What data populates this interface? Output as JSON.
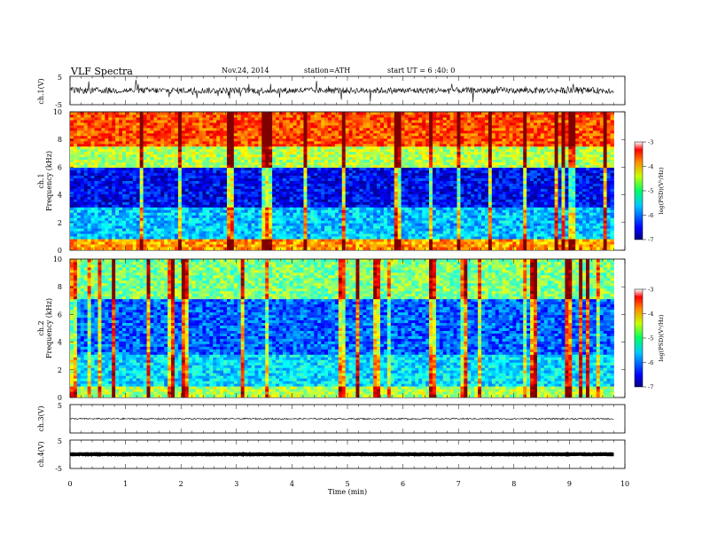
{
  "header": {
    "title": "VLF  Spectra",
    "date": "Nov.24, 2014",
    "station": "station=ATH",
    "start": "start  UT  =    6  :40: 0"
  },
  "chart_data": [
    {
      "type": "line",
      "name": "ch1-waveform",
      "ylabel": "ch.1(V)",
      "ylim": [
        -5,
        5
      ],
      "yticks": [
        "5",
        "-5"
      ],
      "level": 0.0,
      "xlim": [
        0,
        9.8
      ]
    },
    {
      "type": "heatmap",
      "name": "ch1-spectrogram",
      "ylabel": "ch.1\nFrequency (kHz)",
      "ylabel_top": "ch.1",
      "ylabel_bottom": "Frequency (kHz)",
      "ylim": [
        0,
        10
      ],
      "yticks": [
        "0",
        "2",
        "4",
        "6",
        "8",
        "10"
      ],
      "xlim": [
        0,
        9.8
      ],
      "colorbar": {
        "label": "log(PSD)(V²/Hz)",
        "range": [
          -7,
          -3
        ],
        "ticks": [
          "-3",
          "-4",
          "-5",
          "-6",
          "-7"
        ]
      }
    },
    {
      "type": "heatmap",
      "name": "ch2-spectrogram",
      "ylabel": "ch.2\nFrequency (kHz)",
      "ylabel_top": "ch.2",
      "ylabel_bottom": "Frequency (kHz)",
      "ylim": [
        0,
        10
      ],
      "yticks": [
        "0",
        "2",
        "4",
        "6",
        "8",
        "10"
      ],
      "xlim": [
        0,
        9.8
      ],
      "colorbar": {
        "label": "log(PSD)(V²/Hz)",
        "range": [
          -7,
          -3
        ],
        "ticks": [
          "-3",
          "-4",
          "-5",
          "-6",
          "-7"
        ]
      }
    },
    {
      "type": "line",
      "name": "ch3-waveform",
      "ylabel": "ch.3(V)",
      "ylim": [
        -5,
        5
      ],
      "yticks": [
        "5",
        "-5"
      ],
      "level": 0.0,
      "xlim": [
        0,
        9.8
      ]
    },
    {
      "type": "line",
      "name": "ch4-waveform",
      "ylabel": "ch.4(V)",
      "ylim": [
        -5,
        5
      ],
      "yticks": [
        "5",
        "-5"
      ],
      "level": 0.0,
      "xlim": [
        0,
        9.8
      ]
    }
  ],
  "xaxis": {
    "label": "Time  (min)",
    "range": [
      0,
      10
    ],
    "ticks": [
      "0",
      "1",
      "2",
      "3",
      "4",
      "5",
      "6",
      "7",
      "8",
      "9",
      "10"
    ]
  },
  "colors": {
    "jet_low": "#00007f",
    "jet_high": "#ff0000"
  }
}
